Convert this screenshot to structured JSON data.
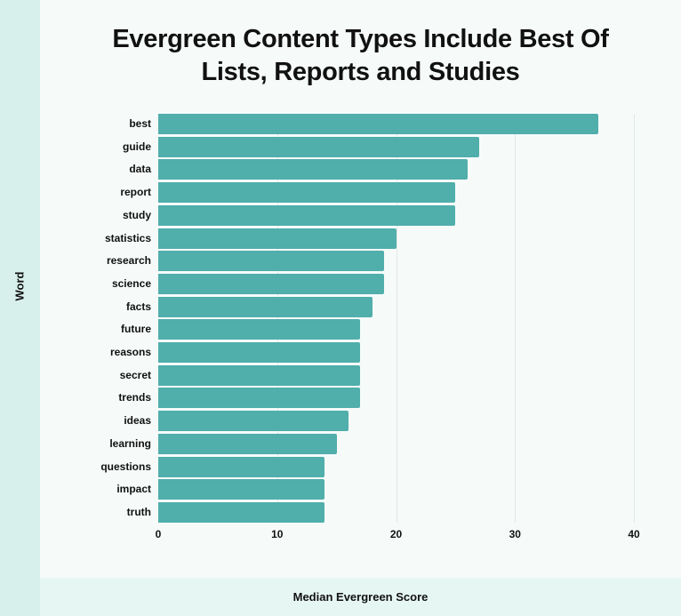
{
  "chart_data": {
    "type": "bar",
    "orientation": "horizontal",
    "title": "Evergreen Content Types Include Best Of Lists, Reports and Studies",
    "xlabel": "Median Evergreen Score",
    "ylabel": "Word",
    "categories": [
      "best",
      "guide",
      "data",
      "report",
      "study",
      "statistics",
      "research",
      "science",
      "facts",
      "future",
      "reasons",
      "secret",
      "trends",
      "ideas",
      "learning",
      "questions",
      "impact",
      "truth"
    ],
    "values": [
      37,
      27,
      26,
      25,
      25,
      20,
      19,
      19,
      18,
      17,
      17,
      17,
      17,
      16,
      15,
      14,
      14,
      14
    ],
    "xlim": [
      0,
      40
    ],
    "xticks": [
      "0",
      "10",
      "20",
      "30",
      "40"
    ],
    "grid": true,
    "bar_color": "#50aeab"
  },
  "title_line1": "Evergreen Content Types Include Best Of",
  "title_line2": "Lists, Reports and Studies"
}
